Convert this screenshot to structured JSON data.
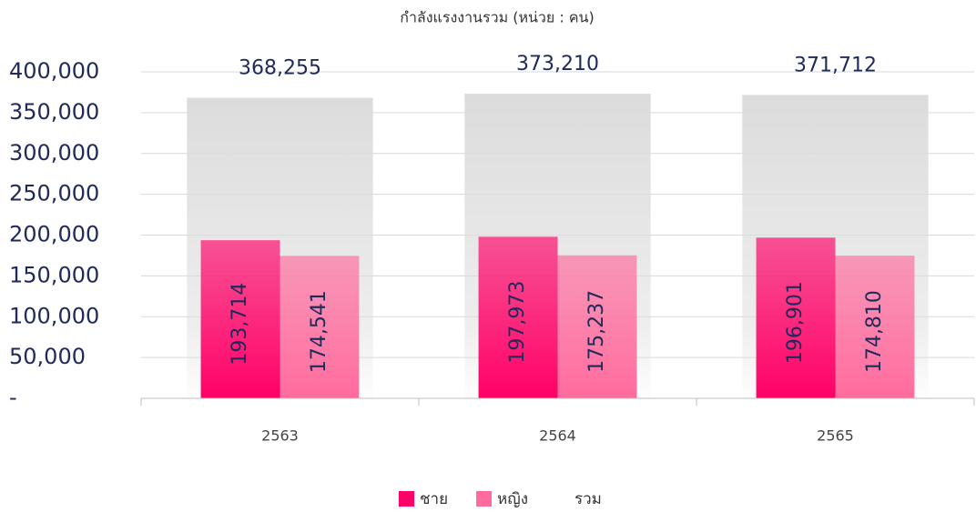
{
  "chart_data": {
    "type": "bar",
    "title": "กำลังแรงงานรวม (หน่วย : คน)",
    "categories": [
      "2563",
      "2564",
      "2565"
    ],
    "series": [
      {
        "name": "ชาย",
        "color": "#ff0066",
        "values": [
          193714,
          197973,
          196901
        ],
        "value_labels": [
          "193,714",
          "197,973",
          "196,901"
        ]
      },
      {
        "name": "หญิง",
        "color": "#ff6b9d",
        "values": [
          174541,
          175237,
          174810
        ],
        "value_labels": [
          "174,541",
          "175,237",
          "174,810"
        ]
      },
      {
        "name": "รวม",
        "color": "#dcdcdc",
        "values": [
          368255,
          373210,
          371712
        ],
        "value_labels": [
          "368,255",
          "373,210",
          "371,712"
        ]
      }
    ],
    "ylim": [
      0,
      400000
    ],
    "yticks": [
      {
        "value": 0,
        "label": "-"
      },
      {
        "value": 50000,
        "label": "50,000"
      },
      {
        "value": 100000,
        "label": "100,000"
      },
      {
        "value": 150000,
        "label": "150,000"
      },
      {
        "value": 200000,
        "label": "200,000"
      },
      {
        "value": 250000,
        "label": "250,000"
      },
      {
        "value": 300000,
        "label": "300,000"
      },
      {
        "value": 350000,
        "label": "350,000"
      },
      {
        "value": 400000,
        "label": "400,000"
      }
    ],
    "grid": true,
    "legend": "bottom"
  }
}
